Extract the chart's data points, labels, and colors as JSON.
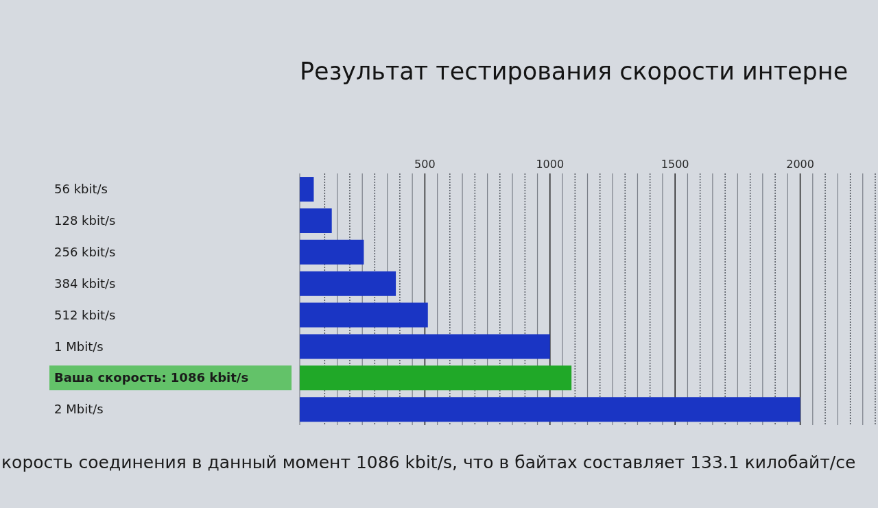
{
  "chart_data": {
    "type": "bar",
    "orientation": "horizontal",
    "title": "Результат тестирования скорости интерне",
    "categories": [
      "56 kbit/s",
      "128 kbit/s",
      "256 kbit/s",
      "384 kbit/s",
      "512 kbit/s",
      "1 Mbit/s",
      "Ваша скорость: 1086 kbit/s",
      "2 Mbit/s"
    ],
    "values": [
      56,
      128,
      256,
      384,
      512,
      1000,
      1086,
      2000
    ],
    "colors": [
      "#1a35c4",
      "#1a35c4",
      "#1a35c4",
      "#1a35c4",
      "#1a35c4",
      "#1a35c4",
      "#20a828",
      "#1a35c4"
    ],
    "xlim": [
      0,
      2300
    ],
    "xticks": [
      {
        "value": 100,
        "label": null
      },
      {
        "value": 150,
        "label": null
      },
      {
        "value": 200,
        "label": null
      },
      {
        "value": 250,
        "label": null
      },
      {
        "value": 300,
        "label": null
      },
      {
        "value": 350,
        "label": null
      },
      {
        "value": 400,
        "label": null
      },
      {
        "value": 450,
        "label": null
      },
      500,
      {
        "value": 550,
        "label": null
      },
      {
        "value": 600,
        "label": null
      },
      {
        "value": 650,
        "label": null
      },
      {
        "value": 700,
        "label": null
      },
      {
        "value": 750,
        "label": null
      },
      {
        "value": 800,
        "label": null
      },
      {
        "value": 850,
        "label": null
      },
      {
        "value": 900,
        "label": null
      },
      {
        "value": 950,
        "label": null
      },
      1000,
      {
        "value": 1050,
        "label": null
      },
      {
        "value": 1100,
        "label": null
      },
      {
        "value": 1150,
        "label": null
      },
      {
        "value": 1200,
        "label": null
      },
      {
        "value": 1250,
        "label": null
      },
      {
        "value": 1300,
        "label": null
      },
      {
        "value": 1350,
        "label": null
      },
      {
        "value": 1400,
        "label": null
      },
      {
        "value": 1450,
        "label": null
      },
      1500,
      {
        "value": 1550,
        "label": null
      },
      {
        "value": 1600,
        "label": null
      },
      {
        "value": 1650,
        "label": null
      },
      {
        "value": 1700,
        "label": null
      },
      {
        "value": 1750,
        "label": null
      },
      {
        "value": 1800,
        "label": null
      },
      {
        "value": 1850,
        "label": null
      },
      {
        "value": 1900,
        "label": null
      },
      {
        "value": 1950,
        "label": null
      },
      2000,
      {
        "value": 2050,
        "label": null
      },
      {
        "value": 2100,
        "label": null
      },
      {
        "value": 2150,
        "label": null
      },
      {
        "value": 2200,
        "label": null
      },
      {
        "value": 2250,
        "label": null
      },
      {
        "value": 2300,
        "label": null
      }
    ],
    "grid": "x",
    "annotations": [
      "корость соединения в данный момент 1086 kbit/s, что в байтах составляет 133.1 килобайт/се"
    ]
  }
}
